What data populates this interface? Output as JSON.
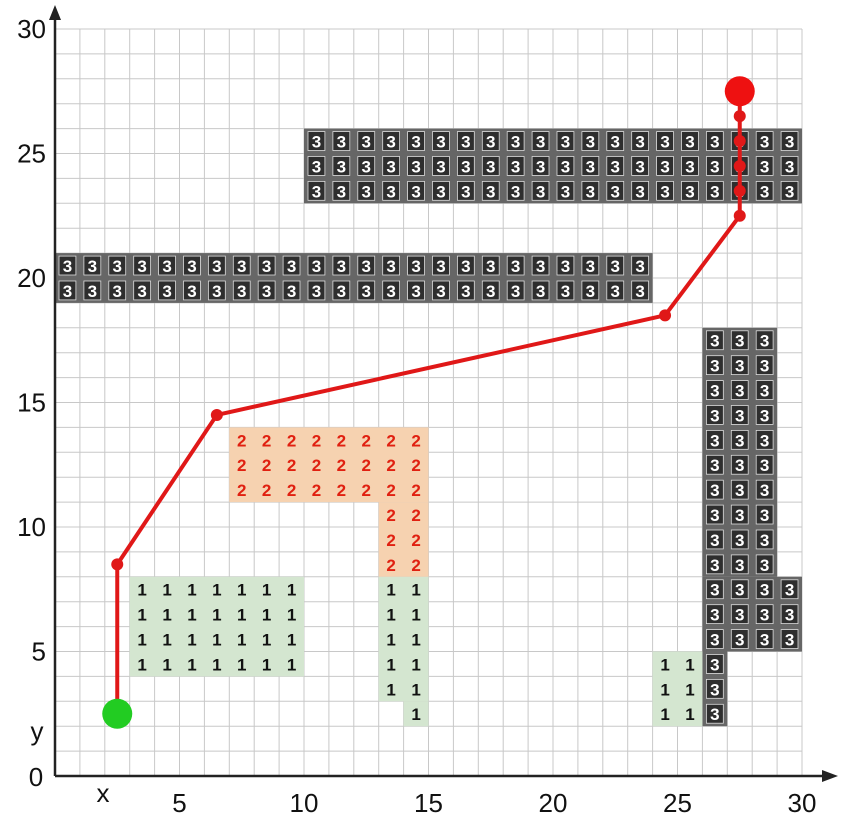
{
  "axes": {
    "x_label": "x",
    "y_label": "y",
    "origin_label": "0",
    "x_ticks": [
      "5",
      "10",
      "15",
      "20",
      "25",
      "30"
    ],
    "y_ticks": [
      "5",
      "10",
      "15",
      "20",
      "25",
      "30"
    ],
    "range": [
      0,
      30
    ]
  },
  "colors": {
    "grid": "#c8c8c8",
    "axis": "#222222",
    "zone1_fill": "#d4e6d0",
    "zone1_text": "#111111",
    "zone2_fill": "#f6d2b0",
    "zone2_text": "#e02010",
    "zone3_fill": "#666666",
    "zone3_text": "#ffffff",
    "path": "#e01818",
    "start": "#22cc22",
    "goal": "#ee1111"
  },
  "zones": [
    {
      "label": "3",
      "cells": [
        [
          10,
          23,
          29,
          25
        ]
      ]
    },
    {
      "label": "3",
      "cells": [
        [
          0,
          19,
          23,
          20
        ]
      ]
    },
    {
      "label": "3",
      "cells": [
        [
          26,
          8,
          28,
          17
        ],
        [
          26,
          5,
          29,
          7
        ],
        [
          26,
          2,
          26,
          4
        ]
      ]
    },
    {
      "label": "2",
      "cells": [
        [
          7,
          11,
          14,
          13
        ],
        [
          13,
          8,
          14,
          10
        ]
      ]
    },
    {
      "label": "1",
      "cells": [
        [
          3,
          4,
          9,
          7
        ],
        [
          13,
          3,
          14,
          7
        ],
        [
          14,
          2,
          14,
          2
        ],
        [
          24,
          2,
          25,
          4
        ]
      ]
    }
  ],
  "path": {
    "points": [
      [
        2.5,
        2.5
      ],
      [
        2.5,
        8.5
      ],
      [
        6.5,
        14.5
      ],
      [
        24.5,
        18.5
      ],
      [
        27.5,
        22.5
      ],
      [
        27.5,
        23.5
      ],
      [
        27.5,
        24.5
      ],
      [
        27.5,
        25.5
      ],
      [
        27.5,
        26.5
      ]
    ],
    "start": [
      2.5,
      2.5
    ],
    "goal": [
      27.5,
      27.5
    ]
  }
}
